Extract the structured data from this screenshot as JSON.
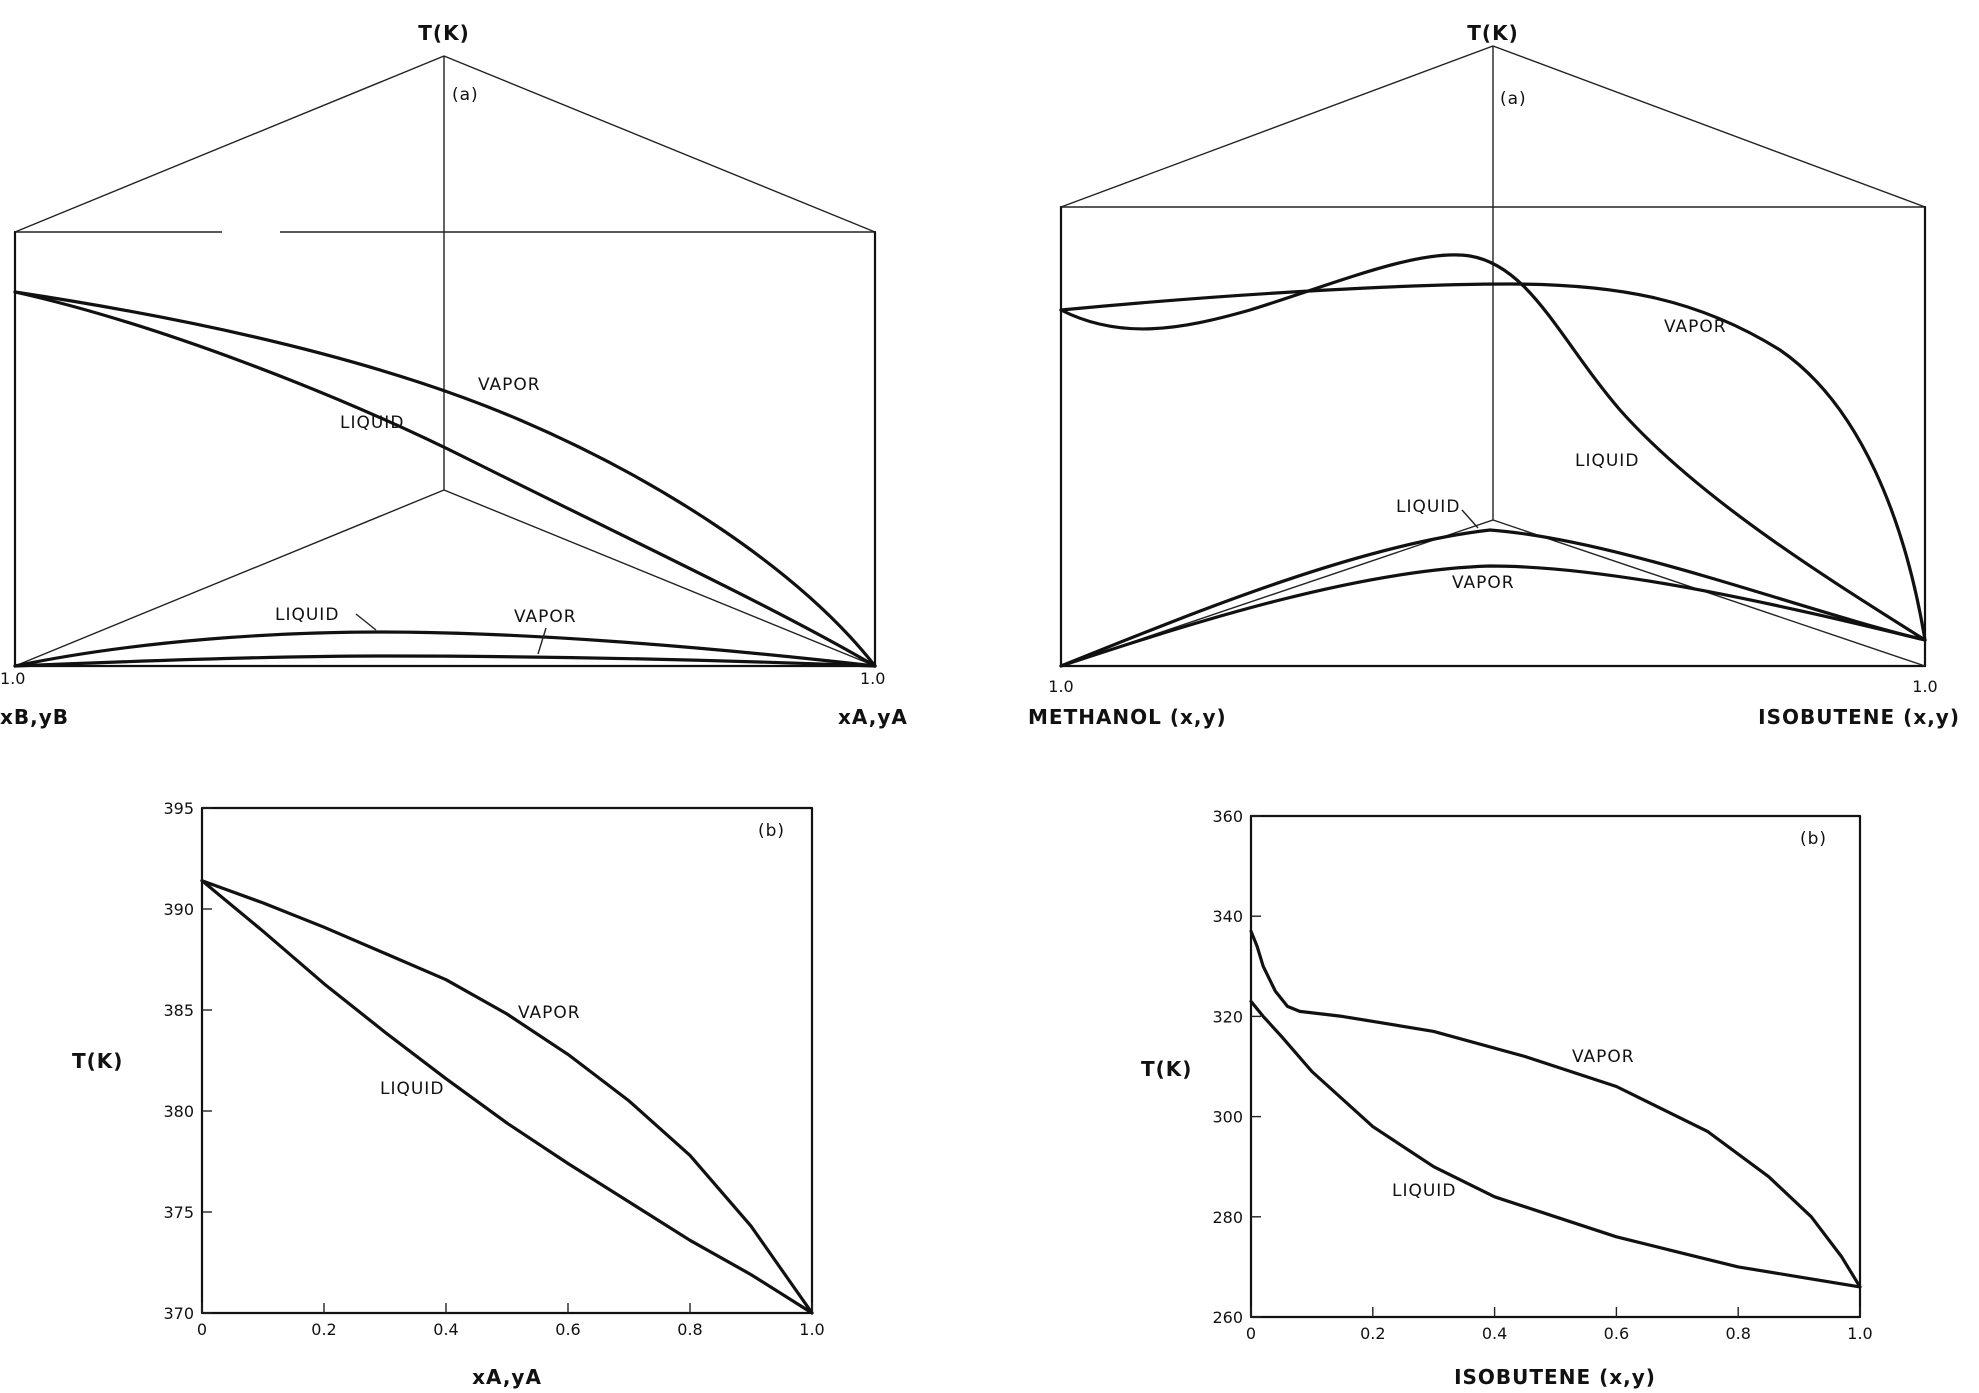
{
  "panels": [
    {
      "id": "top-left",
      "panel_label": "(a)",
      "axis_title": "T(K)",
      "corner_left": "1.0",
      "corner_right": "1.0",
      "axis_left": "xB,yB",
      "axis_right": "xA,yA",
      "labels": {
        "vapor": "VAPOR",
        "liquid": "LIQUID",
        "base_liquid": "LIQUID",
        "base_vapor": "VAPOR"
      }
    },
    {
      "id": "top-right",
      "panel_label": "(a)",
      "axis_title": "T(K)",
      "corner_left": "1.0",
      "corner_right": "1.0",
      "axis_left": "METHANOL (x,y)",
      "axis_right": "ISOBUTENE (x,y)",
      "labels": {
        "vapor": "VAPOR",
        "liquid": "LIQUID",
        "base_liquid": "LIQUID",
        "base_vapor": "VAPOR"
      }
    }
  ],
  "chart_data": [
    {
      "type": "line",
      "panel_label": "(b)",
      "xlabel": "xA,yA",
      "ylabel": "T(K)",
      "xlim": [
        0,
        1
      ],
      "ylim": [
        370,
        395
      ],
      "xticks": [
        0,
        0.2,
        0.4,
        0.6,
        0.8,
        1.0
      ],
      "xtick_labels": [
        "0",
        "0.2",
        "0.4",
        "0.6",
        "0.8",
        "1.0"
      ],
      "yticks": [
        370,
        375,
        380,
        385,
        390,
        395
      ],
      "ytick_labels": [
        "370",
        "375",
        "380",
        "385",
        "390",
        "395"
      ],
      "series": [
        {
          "name": "VAPOR",
          "x": [
            0,
            0.1,
            0.2,
            0.3,
            0.4,
            0.5,
            0.6,
            0.7,
            0.8,
            0.9,
            1.0
          ],
          "y": [
            391.4,
            390.3,
            389.1,
            387.8,
            386.5,
            384.8,
            382.8,
            380.5,
            377.8,
            374.3,
            370.0
          ]
        },
        {
          "name": "LIQUID",
          "x": [
            0,
            0.1,
            0.2,
            0.3,
            0.4,
            0.5,
            0.6,
            0.7,
            0.8,
            0.9,
            1.0
          ],
          "y": [
            391.4,
            388.9,
            386.3,
            383.9,
            381.6,
            379.4,
            377.4,
            375.5,
            373.6,
            371.9,
            370.0
          ]
        }
      ]
    },
    {
      "type": "line",
      "panel_label": "(b)",
      "xlabel": "ISOBUTENE (x,y)",
      "ylabel": "T(K)",
      "xlim": [
        0,
        1
      ],
      "ylim": [
        260,
        360
      ],
      "xticks": [
        0,
        0.2,
        0.4,
        0.6,
        0.8,
        1.0
      ],
      "xtick_labels": [
        "0",
        "0.2",
        "0.4",
        "0.6",
        "0.8",
        "1.0"
      ],
      "yticks": [
        260,
        280,
        300,
        320,
        340,
        360
      ],
      "ytick_labels": [
        "260",
        "280",
        "300",
        "320",
        "340",
        "360"
      ],
      "series": [
        {
          "name": "VAPOR",
          "x": [
            0,
            0.01,
            0.02,
            0.04,
            0.06,
            0.08,
            0.15,
            0.3,
            0.45,
            0.6,
            0.75,
            0.85,
            0.92,
            0.97,
            1.0
          ],
          "y": [
            337,
            334,
            330,
            325,
            322,
            321,
            320,
            317,
            312,
            306,
            297,
            288,
            280,
            272,
            266
          ]
        },
        {
          "name": "LIQUID",
          "x": [
            0,
            0.02,
            0.05,
            0.1,
            0.2,
            0.3,
            0.4,
            0.5,
            0.6,
            0.7,
            0.8,
            0.9,
            1.0
          ],
          "y": [
            323,
            320,
            316,
            309,
            298,
            290,
            284,
            280,
            276,
            273,
            270,
            268,
            266
          ]
        }
      ]
    }
  ]
}
